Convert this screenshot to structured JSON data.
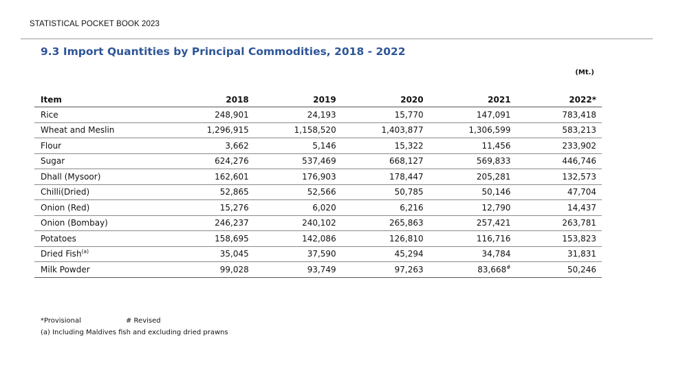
{
  "header": {
    "book_title": "STATISTICAL POCKET BOOK 2023"
  },
  "table": {
    "title": "9.3 Import Quantities by Principal Commodities, 2018 - 2022",
    "unit": "(Mt.)",
    "columns": [
      "Item",
      "2018",
      "2019",
      "2020",
      "2021",
      "2022*"
    ],
    "rows": [
      {
        "item": "Rice",
        "item_note": "",
        "values": [
          "248,901",
          "24,193",
          "15,770",
          "147,091",
          "783,418"
        ],
        "v2021_note": ""
      },
      {
        "item": "Wheat and Meslin",
        "item_note": "",
        "values": [
          "1,296,915",
          "1,158,520",
          "1,403,877",
          "1,306,599",
          "583,213"
        ],
        "v2021_note": ""
      },
      {
        "item": "Flour",
        "item_note": "",
        "values": [
          "3,662",
          "5,146",
          "15,322",
          "11,456",
          "233,902"
        ],
        "v2021_note": ""
      },
      {
        "item": "Sugar",
        "item_note": "",
        "values": [
          "624,276",
          "537,469",
          "668,127",
          "569,833",
          "446,746"
        ],
        "v2021_note": ""
      },
      {
        "item": "Dhall (Mysoor)",
        "item_note": "",
        "values": [
          "162,601",
          "176,903",
          "178,447",
          "205,281",
          "132,573"
        ],
        "v2021_note": ""
      },
      {
        "item": "Chilli(Dried)",
        "item_note": "",
        "values": [
          "52,865",
          "52,566",
          "50,785",
          "50,146",
          "47,704"
        ],
        "v2021_note": ""
      },
      {
        "item": "Onion (Red)",
        "item_note": "",
        "values": [
          "15,276",
          "6,020",
          "6,216",
          "12,790",
          "14,437"
        ],
        "v2021_note": ""
      },
      {
        "item": "Onion (Bombay)",
        "item_note": "",
        "values": [
          "246,237",
          "240,102",
          "265,863",
          "257,421",
          "263,781"
        ],
        "v2021_note": ""
      },
      {
        "item": "Potatoes",
        "item_note": "",
        "values": [
          "158,695",
          "142,086",
          "126,810",
          "116,716",
          "153,823"
        ],
        "v2021_note": ""
      },
      {
        "item": "Dried Fish",
        "item_note": "(a)",
        "values": [
          "35,045",
          "37,590",
          "45,294",
          "34,784",
          "31,831"
        ],
        "v2021_note": ""
      },
      {
        "item": "Milk Powder",
        "item_note": "",
        "values": [
          "99,028",
          "93,749",
          "97,263",
          "83,668",
          "50,246"
        ],
        "v2021_note": "#"
      }
    ]
  },
  "footnotes": {
    "provisional": "*Provisional",
    "revised": "# Revised",
    "note_a": "(a) Including Maldives fish and excluding dried prawns"
  }
}
